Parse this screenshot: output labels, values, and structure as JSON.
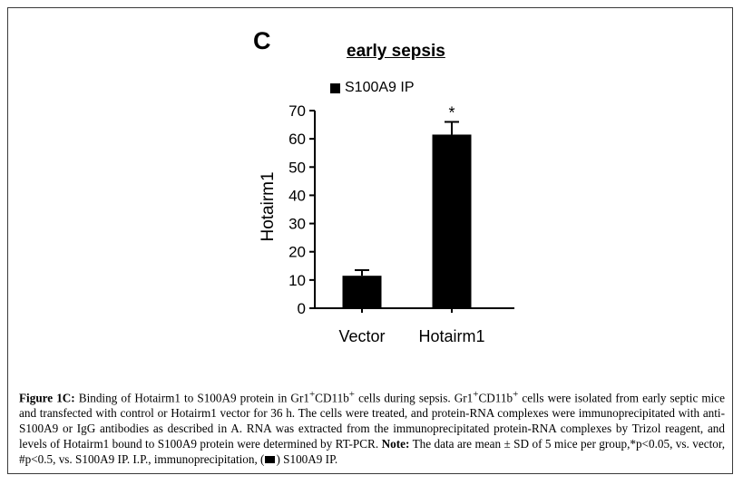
{
  "panel_label": "C",
  "chart_data": {
    "type": "bar",
    "title": "early sepsis",
    "categories": [
      "Vector",
      "Hotairm1"
    ],
    "series": [
      {
        "name": "S100A9 IP",
        "values": [
          11.5,
          61.5
        ],
        "error": [
          2,
          4.5
        ],
        "color": "#000000"
      }
    ],
    "ylabel": "Hotairm1",
    "ylim": [
      0,
      70
    ],
    "yticks": [
      "0",
      "10",
      "20",
      "30",
      "40",
      "50",
      "60",
      "70"
    ],
    "annotations": [
      {
        "category": "Hotairm1",
        "text": "*"
      }
    ],
    "grid": false,
    "legend_position": "top"
  },
  "caption": {
    "label": "Figure 1C:",
    "text1": " Binding of Hotairm1 to S100A9 protein in Gr1",
    "text2": "CD11b",
    "text3": " cells during sepsis. Gr1",
    "text4": "CD11b",
    "text5": " cells were isolated from early septic mice and transfected with control or Hotairm1 vector for 36 h. The cells were treated, and protein-RNA complexes were immunoprecipitated with anti-S100A9 or IgG antibodies as described in A. RNA was extracted from the immunoprecipitated protein-RNA complexes by Trizol reagent, and levels of Hotairm1 bound to S100A9 protein were determined by RT-PCR.",
    "note_label": "Note:",
    "note_text": " The data are mean ± SD of 5 mice per group,*p<0.05, vs. vector, #p<0.5, vs. S100A9 IP. I.P., immunoprecipitation, (",
    "note_end": ") S100A9 IP.",
    "superscript": "+"
  }
}
